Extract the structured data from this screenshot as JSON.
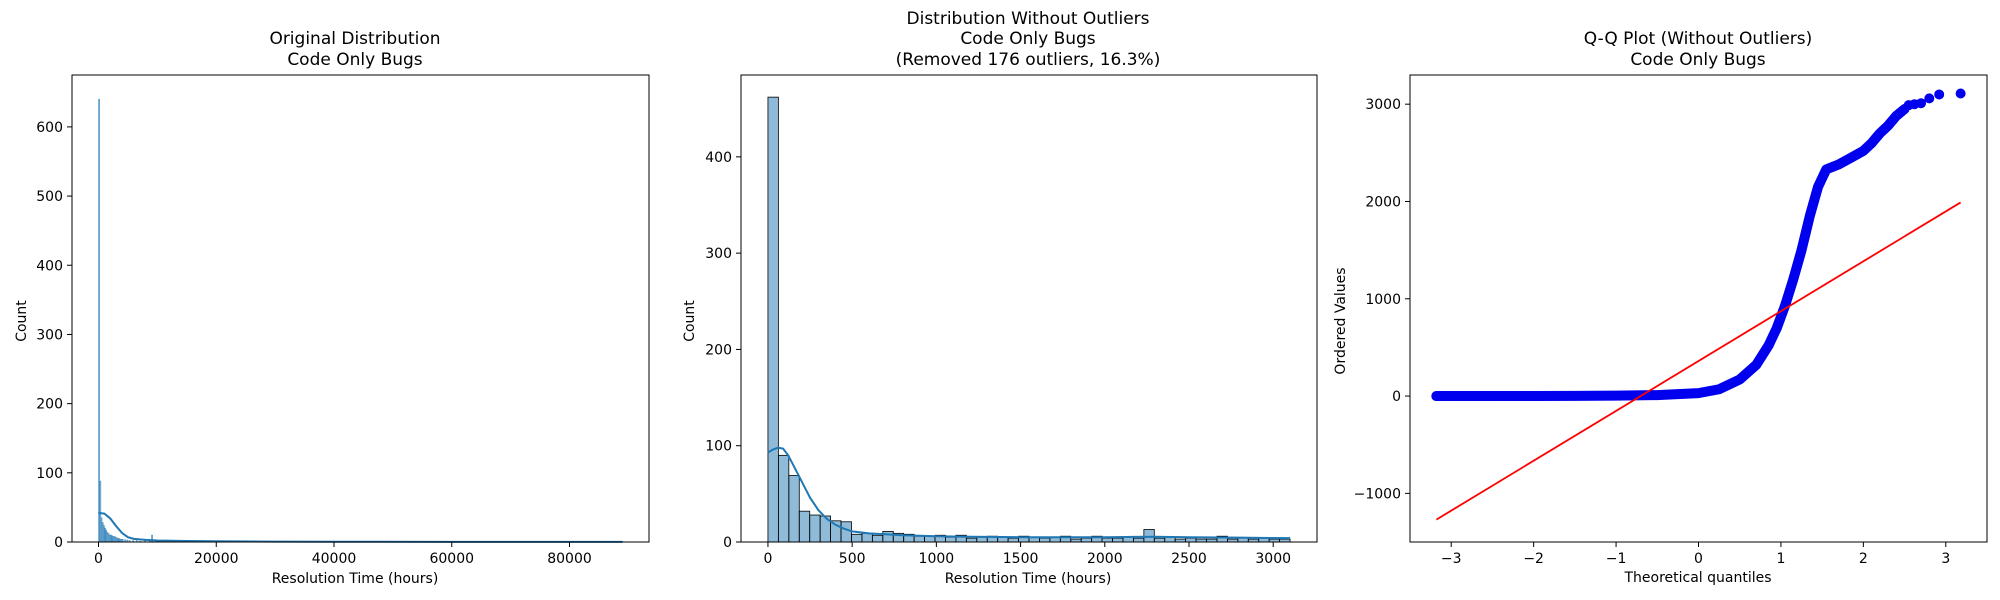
{
  "chart_data": [
    {
      "type": "histogram",
      "title_lines": [
        "Original Distribution",
        "Code Only Bugs"
      ],
      "xlabel": "Resolution Time (hours)",
      "ylabel": "Count",
      "xlim": [
        -4500,
        93500
      ],
      "ylim": [
        0,
        675
      ],
      "xticks": [
        0,
        20000,
        40000,
        60000,
        80000
      ],
      "yticks": [
        0,
        100,
        200,
        300,
        400,
        500,
        600
      ],
      "bin_width": 200,
      "bins": [
        {
          "x": 0,
          "count": 640
        },
        {
          "x": 200,
          "count": 88
        },
        {
          "x": 400,
          "count": 35
        },
        {
          "x": 600,
          "count": 28
        },
        {
          "x": 800,
          "count": 24
        },
        {
          "x": 1000,
          "count": 20
        },
        {
          "x": 1200,
          "count": 17
        },
        {
          "x": 1400,
          "count": 14
        },
        {
          "x": 1600,
          "count": 12
        },
        {
          "x": 1800,
          "count": 10
        },
        {
          "x": 2000,
          "count": 10
        },
        {
          "x": 2200,
          "count": 9
        },
        {
          "x": 2400,
          "count": 8
        },
        {
          "x": 2600,
          "count": 8
        },
        {
          "x": 2800,
          "count": 7
        },
        {
          "x": 3000,
          "count": 6
        },
        {
          "x": 3200,
          "count": 5
        },
        {
          "x": 3400,
          "count": 5
        },
        {
          "x": 3600,
          "count": 4
        },
        {
          "x": 3800,
          "count": 4
        },
        {
          "x": 4000,
          "count": 4
        },
        {
          "x": 4400,
          "count": 3
        },
        {
          "x": 4800,
          "count": 3
        },
        {
          "x": 5200,
          "count": 2
        },
        {
          "x": 5800,
          "count": 2
        },
        {
          "x": 6400,
          "count": 2
        },
        {
          "x": 7000,
          "count": 1
        },
        {
          "x": 7800,
          "count": 2
        },
        {
          "x": 8600,
          "count": 1
        },
        {
          "x": 9000,
          "count": 10
        },
        {
          "x": 10000,
          "count": 1
        },
        {
          "x": 12000,
          "count": 1
        },
        {
          "x": 15000,
          "count": 1
        },
        {
          "x": 20000,
          "count": 1
        },
        {
          "x": 28000,
          "count": 1
        },
        {
          "x": 40000,
          "count": 1
        },
        {
          "x": 60000,
          "count": 1
        },
        {
          "x": 88800,
          "count": 1
        }
      ],
      "kde": [
        [
          0,
          42
        ],
        [
          1000,
          41
        ],
        [
          2000,
          34
        ],
        [
          3000,
          23
        ],
        [
          4000,
          13
        ],
        [
          5000,
          7
        ],
        [
          6000,
          4.5
        ],
        [
          8000,
          3
        ],
        [
          10000,
          2.2
        ],
        [
          15000,
          1.4
        ],
        [
          20000,
          1
        ],
        [
          30000,
          0.6
        ],
        [
          40000,
          0.4
        ],
        [
          60000,
          0.2
        ],
        [
          89000,
          0.1
        ]
      ],
      "colors": {
        "bar": "#1f77b4",
        "kde": "#1f77b4"
      }
    },
    {
      "type": "histogram",
      "title_lines": [
        "Distribution Without Outliers",
        "Code Only Bugs",
        "(Removed 176 outliers, 16.3%)"
      ],
      "xlabel": "Resolution Time (hours)",
      "ylabel": "Count",
      "xlim": [
        -160,
        3260
      ],
      "ylim": [
        0,
        485
      ],
      "xticks": [
        0,
        500,
        1000,
        1500,
        2000,
        2500,
        3000
      ],
      "yticks": [
        0,
        100,
        200,
        300,
        400
      ],
      "bin_width": 62,
      "counts": [
        462,
        90,
        69,
        32,
        28,
        27,
        22,
        21,
        8,
        9,
        7,
        11,
        9,
        8,
        6,
        6,
        7,
        5,
        7,
        4,
        5,
        6,
        5,
        4,
        6,
        5,
        4,
        5,
        6,
        3,
        4,
        6,
        4,
        4,
        5,
        4,
        13,
        4,
        5,
        3,
        4,
        3,
        3,
        6,
        3,
        4,
        3,
        4,
        3,
        3
      ],
      "kde": [
        [
          0,
          93
        ],
        [
          30,
          96
        ],
        [
          60,
          98
        ],
        [
          90,
          97
        ],
        [
          120,
          90
        ],
        [
          150,
          80
        ],
        [
          200,
          63
        ],
        [
          250,
          46
        ],
        [
          300,
          33
        ],
        [
          350,
          24
        ],
        [
          400,
          18
        ],
        [
          450,
          14
        ],
        [
          500,
          11
        ],
        [
          600,
          9
        ],
        [
          700,
          8
        ],
        [
          800,
          7
        ],
        [
          1000,
          6
        ],
        [
          1200,
          5.5
        ],
        [
          1500,
          5
        ],
        [
          1800,
          5
        ],
        [
          2000,
          5
        ],
        [
          2300,
          5.5
        ],
        [
          2500,
          5
        ],
        [
          2800,
          4.5
        ],
        [
          3100,
          4
        ]
      ],
      "colors": {
        "bar": "#1f77b4",
        "kde": "#1f77b4"
      }
    },
    {
      "type": "scatter",
      "title_lines": [
        "Q-Q Plot (Without Outliers)",
        "Code Only Bugs"
      ],
      "xlabel": "Theoretical quantiles",
      "ylabel": "Ordered Values",
      "xlim": [
        -3.5,
        3.5
      ],
      "ylim": [
        -1500,
        3300
      ],
      "xticks": [
        -3,
        -2,
        -1,
        0,
        1,
        2,
        3
      ],
      "yticks": [
        -1000,
        0,
        1000,
        2000,
        3000
      ],
      "tick_labels": {
        "-3": "−3",
        "-2": "−2",
        "-1": "−1",
        "0": "0",
        "1": "1",
        "2": "2",
        "3": "3",
        "-1000": "−1000",
        "1000": "1000",
        "2000": "2000",
        "3000": "3000"
      },
      "quantile_curve": [
        [
          -3.18,
          0
        ],
        [
          -2.9,
          0
        ],
        [
          -2.5,
          0
        ],
        [
          -2,
          0
        ],
        [
          -1.5,
          2
        ],
        [
          -1,
          5
        ],
        [
          -0.5,
          10
        ],
        [
          0,
          30
        ],
        [
          0.25,
          70
        ],
        [
          0.5,
          170
        ],
        [
          0.7,
          320
        ],
        [
          0.85,
          520
        ],
        [
          0.95,
          700
        ],
        [
          1.05,
          930
        ],
        [
          1.15,
          1200
        ],
        [
          1.25,
          1500
        ],
        [
          1.35,
          1850
        ],
        [
          1.45,
          2150
        ],
        [
          1.55,
          2330
        ],
        [
          1.7,
          2380
        ],
        [
          1.85,
          2450
        ],
        [
          2,
          2520
        ],
        [
          2.1,
          2600
        ],
        [
          2.2,
          2700
        ],
        [
          2.3,
          2780
        ],
        [
          2.4,
          2880
        ],
        [
          2.5,
          2950
        ]
      ],
      "tail_points": [
        [
          -3.18,
          0
        ],
        [
          -2.92,
          0
        ],
        [
          -2.75,
          0
        ],
        [
          -2.64,
          0
        ],
        [
          -2.55,
          0
        ],
        [
          2.55,
          2990
        ],
        [
          2.62,
          3000
        ],
        [
          2.7,
          3010
        ],
        [
          2.8,
          3060
        ],
        [
          2.92,
          3100
        ],
        [
          3.18,
          3110
        ]
      ],
      "fit_line": {
        "x": [
          -3.18,
          3.18
        ],
        "y": [
          -1270,
          1990
        ]
      },
      "colors": {
        "points": "#0000ee",
        "line": "#ff0000"
      }
    }
  ]
}
